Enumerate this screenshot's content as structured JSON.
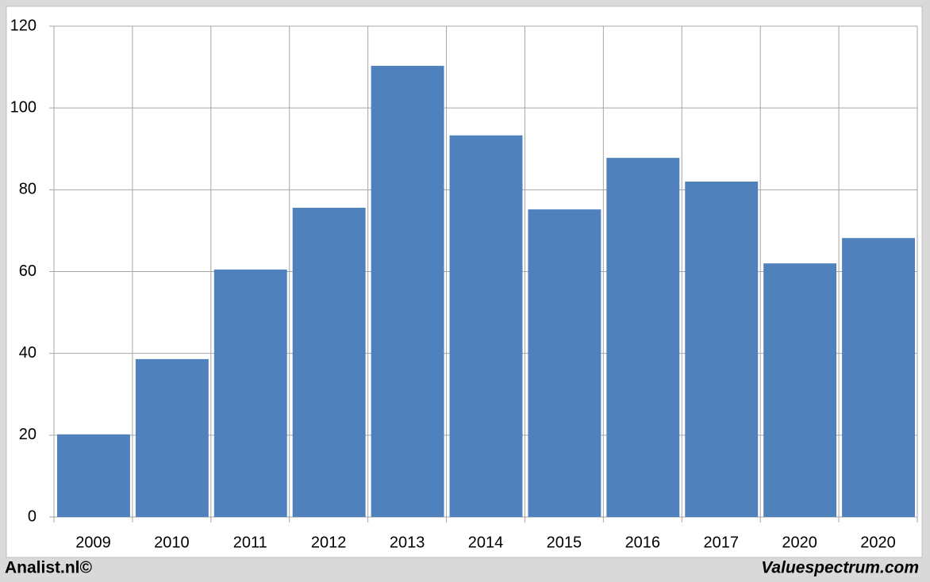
{
  "chart_data": {
    "type": "bar",
    "categories": [
      "2009",
      "2010",
      "2011",
      "2012",
      "2013",
      "2014",
      "2015",
      "2016",
      "2017",
      "2020",
      "2020"
    ],
    "values": [
      20.2,
      38.6,
      60.5,
      75.6,
      110.3,
      93.3,
      75.2,
      87.8,
      82,
      62,
      68.2
    ],
    "color": "#4f81bd",
    "ylim": [
      0,
      120
    ],
    "yticks": [
      0,
      20,
      40,
      60,
      80,
      100,
      120
    ],
    "grid": true
  },
  "footer": {
    "left": "Analist.nl©",
    "right": "Valuespectrum.com"
  }
}
